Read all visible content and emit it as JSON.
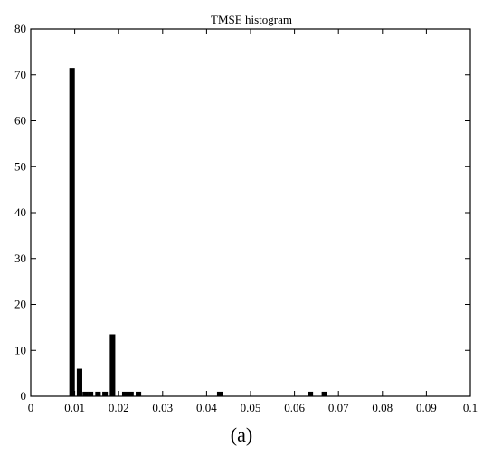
{
  "chart_data": {
    "type": "bar",
    "title": "TMSE histogram",
    "xlabel": "",
    "ylabel": "",
    "xlim": [
      0,
      0.1
    ],
    "ylim": [
      0,
      80
    ],
    "bin_width": 0.00125,
    "x_ticks": [
      "0",
      "0.01",
      "0.02",
      "0.03",
      "0.04",
      "0.05",
      "0.06",
      "0.07",
      "0.08",
      "0.09",
      "0.1"
    ],
    "y_ticks": [
      "0",
      "10",
      "20",
      "30",
      "40",
      "50",
      "60",
      "70",
      "80"
    ],
    "grid": false,
    "bars": [
      {
        "x": 0.0094,
        "value": 71.5
      },
      {
        "x": 0.0111,
        "value": 6
      },
      {
        "x": 0.0124,
        "value": 1
      },
      {
        "x": 0.0136,
        "value": 1
      },
      {
        "x": 0.0153,
        "value": 1
      },
      {
        "x": 0.0169,
        "value": 1
      },
      {
        "x": 0.0186,
        "value": 13.5
      },
      {
        "x": 0.0214,
        "value": 1
      },
      {
        "x": 0.0228,
        "value": 1
      },
      {
        "x": 0.0245,
        "value": 1
      },
      {
        "x": 0.043,
        "value": 1
      },
      {
        "x": 0.0636,
        "value": 1
      },
      {
        "x": 0.0668,
        "value": 1
      }
    ]
  },
  "caption": "(a)"
}
